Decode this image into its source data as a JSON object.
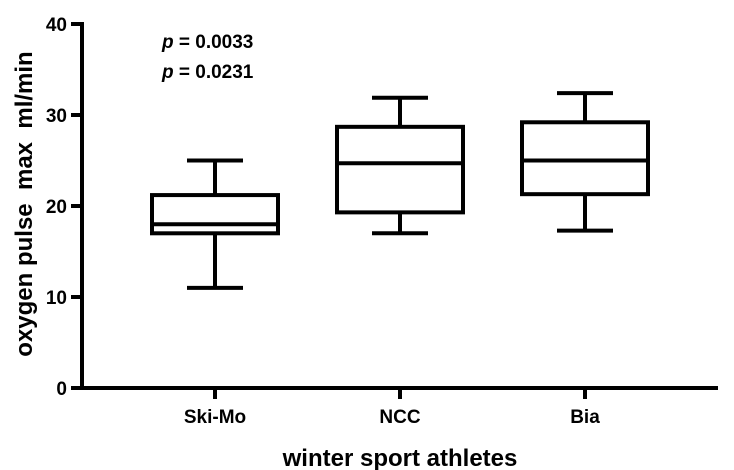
{
  "chart_data": {
    "type": "boxplot",
    "xlabel": "winter sport athletes",
    "ylabel": "oxygen pulse  max  ml/min",
    "ylim": [
      0,
      40
    ],
    "yticks": [
      0,
      10,
      20,
      30,
      40
    ],
    "categories": [
      "Ski-Mo",
      "NCC",
      "Bia"
    ],
    "boxes": [
      {
        "category": "Ski-Mo",
        "min": 11.0,
        "q1": 17.0,
        "median": 18.0,
        "q3": 21.2,
        "max": 25.0
      },
      {
        "category": "NCC",
        "min": 17.0,
        "q1": 19.3,
        "median": 24.7,
        "q3": 28.7,
        "max": 31.9
      },
      {
        "category": "Bia",
        "min": 17.3,
        "q1": 21.3,
        "median": 25.0,
        "q3": 29.2,
        "max": 32.4
      }
    ],
    "annotations": [
      {
        "italic": "p",
        "text": " = 0.0033"
      },
      {
        "italic": "p",
        "text": " = 0.0231"
      }
    ],
    "grid": false,
    "legend": "none"
  }
}
